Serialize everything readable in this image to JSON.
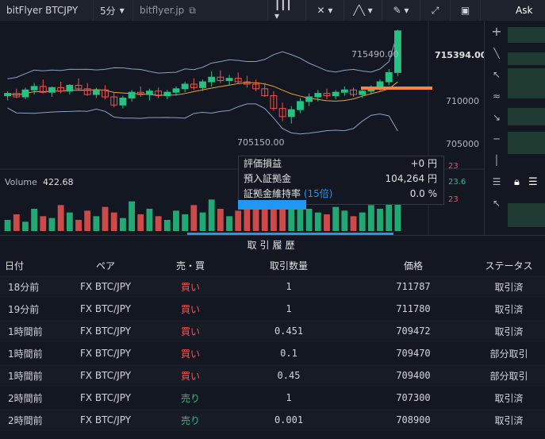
{
  "header": {
    "symbol": "bitFlyer BTCJPY",
    "interval": "5分",
    "source": "bitflyer.jp",
    "icons": [
      "chevron-down-icon",
      "bar-style-icon",
      "indicator-icon",
      "compare-icon",
      "draw-icon",
      "fullscreen-icon",
      "screenshot-icon"
    ]
  },
  "ask_panel": {
    "title": "Ask"
  },
  "chart": {
    "price_labels": [
      "715394.00",
      "710000",
      "705000"
    ],
    "high_label": "715490.00",
    "low_label": "705150.00",
    "volume_label": "Volume",
    "volume_value": "422.68",
    "side_values": [
      "23",
      "23.6",
      "23"
    ],
    "colors": {
      "up": "#26c281",
      "down": "#ef5350",
      "band": "#8ba0c4",
      "ma": "#f0a030",
      "order_line": "#f5843c"
    }
  },
  "chart_data": {
    "type": "candlestick",
    "ylim": [
      704500,
      716000
    ],
    "candles": [
      [
        709800,
        710200,
        709400,
        710000
      ],
      [
        710000,
        710400,
        709600,
        709700
      ],
      [
        709700,
        710500,
        709500,
        710300
      ],
      [
        710300,
        710900,
        709900,
        710600
      ],
      [
        710600,
        711200,
        710000,
        710100
      ],
      [
        710100,
        710600,
        709700,
        710500
      ],
      [
        710500,
        711000,
        710000,
        710200
      ],
      [
        710200,
        710800,
        709900,
        710700
      ],
      [
        710700,
        711300,
        710300,
        710400
      ],
      [
        710400,
        710900,
        709800,
        709900
      ],
      [
        709900,
        710500,
        709600,
        710300
      ],
      [
        710300,
        710700,
        709500,
        709700
      ],
      [
        709700,
        710100,
        708800,
        709000
      ],
      [
        709000,
        709800,
        708700,
        709600
      ],
      [
        709600,
        710300,
        709300,
        710100
      ],
      [
        710100,
        710600,
        709700,
        709900
      ],
      [
        709900,
        710400,
        709400,
        710200
      ],
      [
        710200,
        710500,
        709600,
        709800
      ],
      [
        709800,
        710300,
        709500,
        710100
      ],
      [
        710100,
        710600,
        709800,
        710400
      ],
      [
        710400,
        711000,
        710100,
        710800
      ],
      [
        710800,
        711300,
        710300,
        710500
      ],
      [
        710500,
        711200,
        710200,
        711000
      ],
      [
        711000,
        711900,
        710600,
        711400
      ],
      [
        711400,
        712000,
        710900,
        711100
      ],
      [
        711100,
        711600,
        710700,
        711300
      ],
      [
        711300,
        711800,
        710800,
        711000
      ],
      [
        711000,
        711500,
        710500,
        710800
      ],
      [
        710800,
        711200,
        710200,
        710400
      ],
      [
        710400,
        710900,
        709700,
        709800
      ],
      [
        709800,
        710200,
        708500,
        708700
      ],
      [
        708700,
        709200,
        707600,
        708000
      ],
      [
        708000,
        708900,
        707400,
        708600
      ],
      [
        708600,
        709600,
        708300,
        709300
      ],
      [
        709300,
        710000,
        708900,
        709700
      ],
      [
        709700,
        710300,
        709300,
        710000
      ],
      [
        710000,
        710400,
        709500,
        709800
      ],
      [
        709800,
        710300,
        709500,
        710100
      ],
      [
        710100,
        710600,
        709800,
        710300
      ],
      [
        710300,
        710500,
        709700,
        709900
      ],
      [
        709900,
        710400,
        709600,
        710200
      ],
      [
        710200,
        710700,
        709900,
        710500
      ],
      [
        710500,
        711200,
        710200,
        711000
      ],
      [
        711000,
        712100,
        710700,
        711800
      ],
      [
        711800,
        715490,
        711500,
        715394
      ]
    ],
    "volumes": [
      30,
      45,
      25,
      60,
      40,
      35,
      70,
      50,
      30,
      55,
      40,
      65,
      50,
      35,
      80,
      45,
      60,
      40,
      30,
      55,
      45,
      70,
      50,
      85,
      60,
      40,
      55,
      65,
      90,
      75,
      140,
      120,
      95,
      80,
      60,
      50,
      45,
      65,
      55,
      40,
      50,
      70,
      60,
      80,
      150
    ]
  },
  "overlay": {
    "rows": [
      {
        "label": "評価損益",
        "value": "+0 円"
      },
      {
        "label": "預入証拠金",
        "value": "104,264 円"
      },
      {
        "label": "証拠金維持率",
        "extra": "(15倍)",
        "value": "0.0 %"
      }
    ]
  },
  "history": {
    "title": "取引履歴",
    "columns": [
      "日付",
      "ペア",
      "売・買",
      "取引数量",
      "価格",
      "ステータス"
    ],
    "rows": [
      {
        "date": "18分前",
        "pair": "FX BTC/JPY",
        "side": "買い",
        "qty": "1",
        "price": "711787",
        "status": "取引済"
      },
      {
        "date": "19分前",
        "pair": "FX BTC/JPY",
        "side": "買い",
        "qty": "1",
        "price": "711780",
        "status": "取引済"
      },
      {
        "date": "1時間前",
        "pair": "FX BTC/JPY",
        "side": "買い",
        "qty": "0.451",
        "price": "709472",
        "status": "取引済"
      },
      {
        "date": "1時間前",
        "pair": "FX BTC/JPY",
        "side": "買い",
        "qty": "0.1",
        "price": "709470",
        "status": "部分取引"
      },
      {
        "date": "1時間前",
        "pair": "FX BTC/JPY",
        "side": "買い",
        "qty": "0.45",
        "price": "709400",
        "status": "部分取引"
      },
      {
        "date": "2時間前",
        "pair": "FX BTC/JPY",
        "side": "売り",
        "qty": "1",
        "price": "707300",
        "status": "取引済"
      },
      {
        "date": "2時間前",
        "pair": "FX BTC/JPY",
        "side": "売り",
        "qty": "0.001",
        "price": "708900",
        "status": "取引済"
      }
    ]
  }
}
